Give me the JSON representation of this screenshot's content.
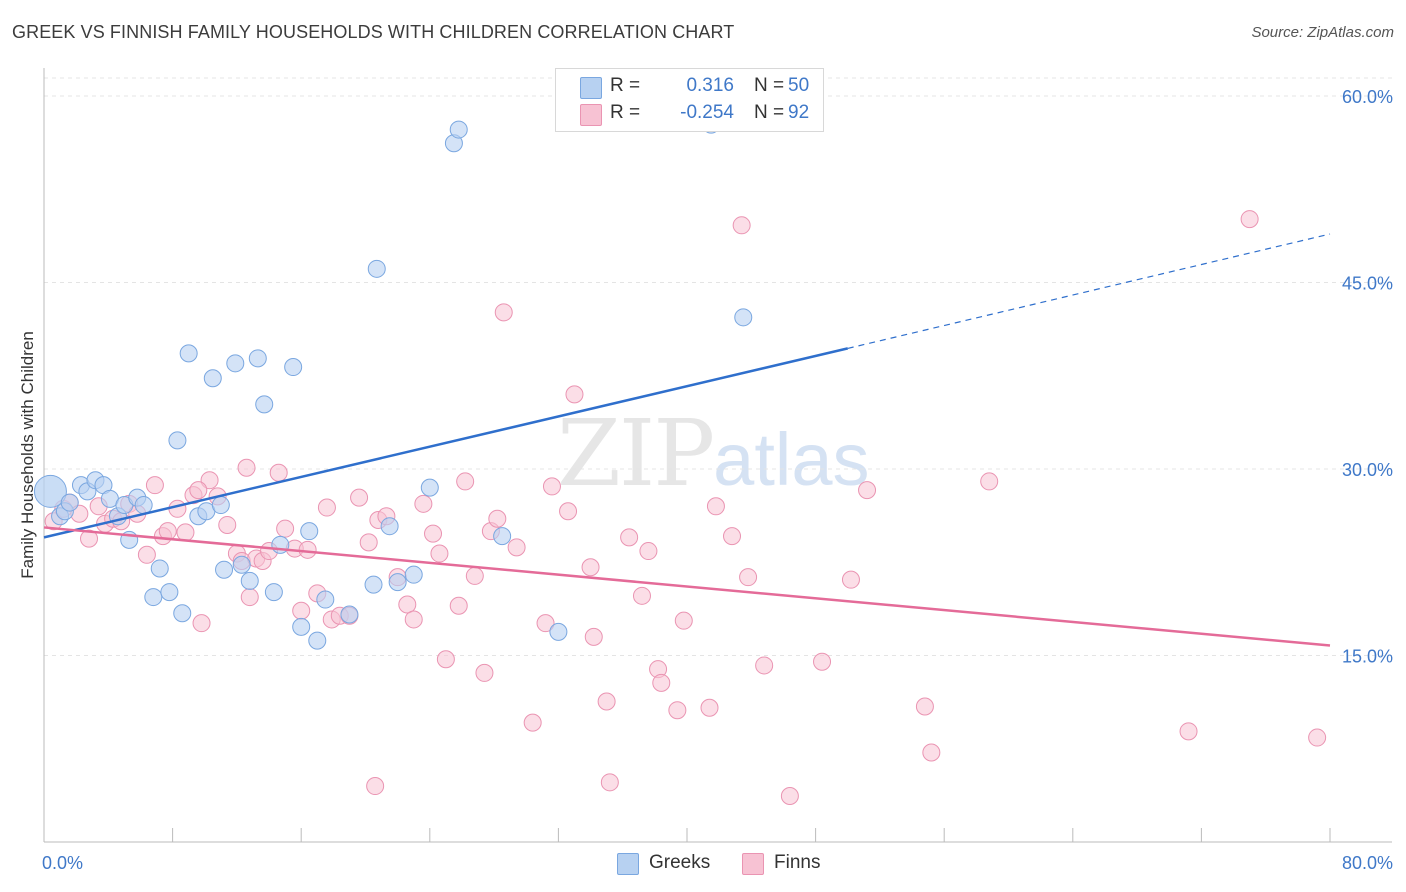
{
  "header": {
    "title": "GREEK VS FINNISH FAMILY HOUSEHOLDS WITH CHILDREN CORRELATION CHART",
    "source": "Source: ZipAtlas.com"
  },
  "watermark": {
    "zip": "ZIP",
    "atlas": "atlas"
  },
  "legend": {
    "rows": [
      {
        "r_label": "R =",
        "r_value": "0.316",
        "n_label": "N =",
        "n_value": "50"
      },
      {
        "r_label": "R =",
        "r_value": "-0.254",
        "n_label": "N =",
        "n_value": "92"
      }
    ]
  },
  "bottom_legend": [
    {
      "label": "Greeks"
    },
    {
      "label": "Finns"
    }
  ],
  "colors": {
    "greeks_fill": "#b7d1f1",
    "greeks_stroke": "#7aa7e0",
    "greeks_line": "#2f6fcc",
    "finns_fill": "#f7c2d3",
    "finns_stroke": "#ea94b2",
    "finns_line": "#e46b98",
    "axis_text": "#3f78c8",
    "grid": "#e4e4e4"
  },
  "chart_data": {
    "type": "scatter",
    "title": "GREEK VS FINNISH FAMILY HOUSEHOLDS WITH CHILDREN CORRELATION CHART",
    "xlabel": "",
    "ylabel": "Family Households with Children",
    "x_tick_labels": [
      "0.0%",
      "80.0%"
    ],
    "y_tick_labels": [
      "15.0%",
      "30.0%",
      "45.0%",
      "60.0%"
    ],
    "y_ticks": [
      15,
      30,
      45,
      60
    ],
    "xlim": [
      0,
      80
    ],
    "ylim": [
      0,
      62
    ],
    "grid": true,
    "legend_position": "top-center",
    "series": [
      {
        "name": "Greeks",
        "r": 0.316,
        "n": 50,
        "trend": {
          "x0": 0,
          "y0": 24.5,
          "x1": 50,
          "y1": 39.7,
          "dashed_to_x": 80,
          "dashed_to_y": 48.9
        },
        "points": [
          [
            0.4,
            28.2
          ],
          [
            1.0,
            26.2
          ],
          [
            1.3,
            26.6
          ],
          [
            1.6,
            27.3
          ],
          [
            2.3,
            28.7
          ],
          [
            2.7,
            28.2
          ],
          [
            3.2,
            29.1
          ],
          [
            3.7,
            28.7
          ],
          [
            4.1,
            27.6
          ],
          [
            4.6,
            26.2
          ],
          [
            5.0,
            27.1
          ],
          [
            5.3,
            24.3
          ],
          [
            5.8,
            27.7
          ],
          [
            6.2,
            27.1
          ],
          [
            6.8,
            19.7
          ],
          [
            7.2,
            22.0
          ],
          [
            7.8,
            20.1
          ],
          [
            8.3,
            32.3
          ],
          [
            8.6,
            18.4
          ],
          [
            9.0,
            39.3
          ],
          [
            9.6,
            26.2
          ],
          [
            10.1,
            26.6
          ],
          [
            10.5,
            37.3
          ],
          [
            11.0,
            27.1
          ],
          [
            11.2,
            21.9
          ],
          [
            11.9,
            38.5
          ],
          [
            12.3,
            22.3
          ],
          [
            12.8,
            21.0
          ],
          [
            13.3,
            38.9
          ],
          [
            13.7,
            35.2
          ],
          [
            14.3,
            20.1
          ],
          [
            14.7,
            23.9
          ],
          [
            15.5,
            38.2
          ],
          [
            16.0,
            17.3
          ],
          [
            16.5,
            25.0
          ],
          [
            17.0,
            16.2
          ],
          [
            17.5,
            19.5
          ],
          [
            19.0,
            18.3
          ],
          [
            20.5,
            20.7
          ],
          [
            20.7,
            46.1
          ],
          [
            21.5,
            25.4
          ],
          [
            22.0,
            20.9
          ],
          [
            23.0,
            21.5
          ],
          [
            24.0,
            28.5
          ],
          [
            25.5,
            56.2
          ],
          [
            25.8,
            57.3
          ],
          [
            28.5,
            24.6
          ],
          [
            32.0,
            16.9
          ],
          [
            41.5,
            57.7
          ],
          [
            43.5,
            42.2
          ]
        ]
      },
      {
        "name": "Finns",
        "r": -0.254,
        "n": 92,
        "trend": {
          "x0": 0,
          "y0": 25.3,
          "x1": 80,
          "y1": 15.8
        },
        "points": [
          [
            0.6,
            25.8
          ],
          [
            1.2,
            26.8
          ],
          [
            1.6,
            27.3
          ],
          [
            2.2,
            26.4
          ],
          [
            2.8,
            24.4
          ],
          [
            3.4,
            27.0
          ],
          [
            3.8,
            25.6
          ],
          [
            4.3,
            26.0
          ],
          [
            4.8,
            25.8
          ],
          [
            5.3,
            27.2
          ],
          [
            5.8,
            26.4
          ],
          [
            6.4,
            23.1
          ],
          [
            6.9,
            28.7
          ],
          [
            7.4,
            24.6
          ],
          [
            7.7,
            25.0
          ],
          [
            8.3,
            26.8
          ],
          [
            8.8,
            24.9
          ],
          [
            9.3,
            27.9
          ],
          [
            9.8,
            17.6
          ],
          [
            10.3,
            29.1
          ],
          [
            10.8,
            27.8
          ],
          [
            11.4,
            25.5
          ],
          [
            12.0,
            23.2
          ],
          [
            12.3,
            22.6
          ],
          [
            12.8,
            19.7
          ],
          [
            13.2,
            22.8
          ],
          [
            13.6,
            22.6
          ],
          [
            14.0,
            23.4
          ],
          [
            14.6,
            29.7
          ],
          [
            15.0,
            25.2
          ],
          [
            15.6,
            23.6
          ],
          [
            16.0,
            18.6
          ],
          [
            16.4,
            23.5
          ],
          [
            17.0,
            20.0
          ],
          [
            17.6,
            26.9
          ],
          [
            17.9,
            17.9
          ],
          [
            18.4,
            18.2
          ],
          [
            19.0,
            18.2
          ],
          [
            19.6,
            27.7
          ],
          [
            20.2,
            24.1
          ],
          [
            20.8,
            25.9
          ],
          [
            21.3,
            26.2
          ],
          [
            22.0,
            21.3
          ],
          [
            22.6,
            19.1
          ],
          [
            23.0,
            17.9
          ],
          [
            23.6,
            27.2
          ],
          [
            24.2,
            24.8
          ],
          [
            24.6,
            23.2
          ],
          [
            25.0,
            14.7
          ],
          [
            25.8,
            19.0
          ],
          [
            26.2,
            29.0
          ],
          [
            26.8,
            21.4
          ],
          [
            27.4,
            13.6
          ],
          [
            27.8,
            25.0
          ],
          [
            28.2,
            26.0
          ],
          [
            28.6,
            42.6
          ],
          [
            29.4,
            23.7
          ],
          [
            30.4,
            9.6
          ],
          [
            31.2,
            17.6
          ],
          [
            31.6,
            28.6
          ],
          [
            32.6,
            26.6
          ],
          [
            33.0,
            36.0
          ],
          [
            34.0,
            22.1
          ],
          [
            34.2,
            16.5
          ],
          [
            35.0,
            11.3
          ],
          [
            35.2,
            4.8
          ],
          [
            36.4,
            24.5
          ],
          [
            37.2,
            19.8
          ],
          [
            37.6,
            23.4
          ],
          [
            38.2,
            13.9
          ],
          [
            38.4,
            12.8
          ],
          [
            39.4,
            10.6
          ],
          [
            39.8,
            17.8
          ],
          [
            41.4,
            10.8
          ],
          [
            41.8,
            27.0
          ],
          [
            42.8,
            24.6
          ],
          [
            43.4,
            49.6
          ],
          [
            43.8,
            21.3
          ],
          [
            44.8,
            14.2
          ],
          [
            46.4,
            3.7
          ],
          [
            48.4,
            14.5
          ],
          [
            50.2,
            21.1
          ],
          [
            51.2,
            28.3
          ],
          [
            54.8,
            10.9
          ],
          [
            55.2,
            7.2
          ],
          [
            58.8,
            29.0
          ],
          [
            71.2,
            8.9
          ],
          [
            75.0,
            50.1
          ],
          [
            79.2,
            8.4
          ],
          [
            20.6,
            4.5
          ],
          [
            12.6,
            30.1
          ],
          [
            9.6,
            28.3
          ]
        ]
      }
    ]
  }
}
